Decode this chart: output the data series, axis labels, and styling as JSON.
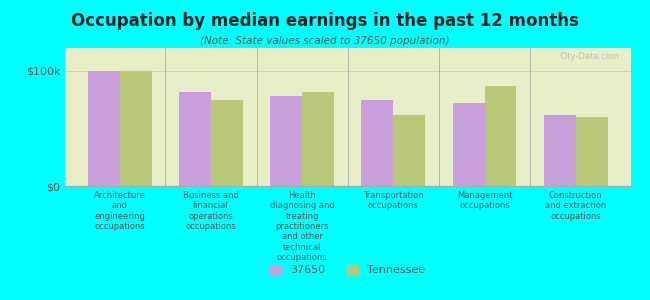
{
  "title": "Occupation by median earnings in the past 12 months",
  "subtitle": "(Note: State values scaled to 37650 population)",
  "background_color": "#00FFFF",
  "plot_bg_color": "#e8efc8",
  "bar_color_local": "#c9a0dc",
  "bar_color_state": "#b8c878",
  "categories": [
    "Architecture\nand\nengineering\noccupations",
    "Business and\nfinancial\noperations\noccupations",
    "Health\ndiagnosing and\ntreating\npractitioners\nand other\ntechnical\noccupations",
    "Transportation\noccupations",
    "Management\noccupations",
    "Construction\nand extraction\noccupations"
  ],
  "values_local": [
    100000,
    82000,
    78000,
    75000,
    72000,
    62000
  ],
  "values_state": [
    100000,
    75000,
    82000,
    62000,
    87000,
    60000
  ],
  "ylim": [
    0,
    120000
  ],
  "yticks": [
    0,
    100000
  ],
  "ytick_labels": [
    "$0",
    "$100k"
  ],
  "legend_local": "37650",
  "legend_state": "Tennessee",
  "watermark": "City-Data.com"
}
